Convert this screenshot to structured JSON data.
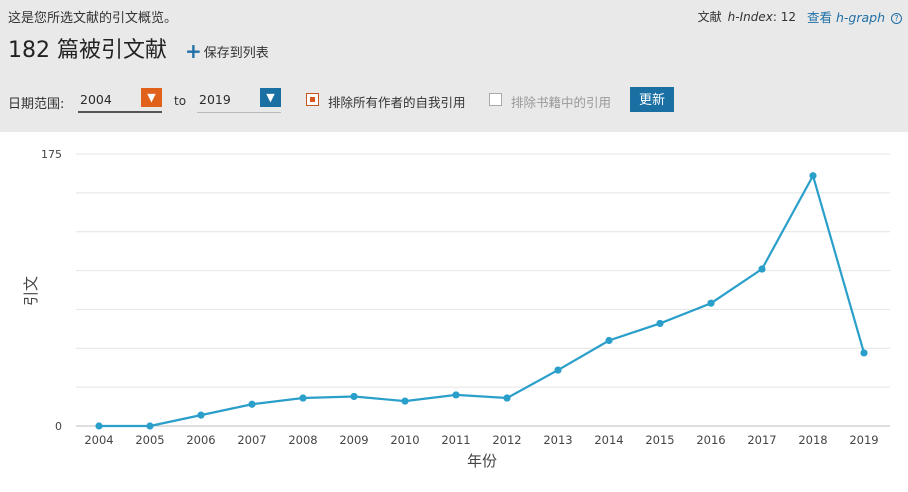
{
  "header": {
    "subtitle": "这是您所选文献的引文概览。",
    "hindex_prefix": "文献",
    "hindex_label": "h-Index",
    "hindex_value": ": 12",
    "hgraph_prefix": "查看",
    "hgraph_label": "h-graph",
    "title": "182 篇被引文献",
    "save_label": "保存到列表"
  },
  "filters": {
    "date_label": "日期范围:",
    "from_value": "2004",
    "to_label": "to",
    "to_value": "2019",
    "exclude_self_label": "排除所有作者的自我引用",
    "exclude_books_label": "排除书籍中的引用",
    "update_label": "更新"
  },
  "colors": {
    "line": "#2a9fca",
    "grid": "#e4e4e4",
    "orange": "#e0621a",
    "blue": "#1a6fa3"
  },
  "chart_data": {
    "type": "line",
    "xlabel": "年份",
    "ylabel": "引文",
    "ylim": [
      0,
      175
    ],
    "yticks": [
      "0",
      "175"
    ],
    "grid": true,
    "categories": [
      "2004",
      "2005",
      "2006",
      "2007",
      "2008",
      "2009",
      "2010",
      "2011",
      "2012",
      "2013",
      "2014",
      "2015",
      "2016",
      "2017",
      "2018",
      "2019"
    ],
    "values": [
      0,
      0,
      7,
      14,
      18,
      19,
      16,
      20,
      18,
      36,
      55,
      66,
      79,
      101,
      161,
      47
    ]
  }
}
